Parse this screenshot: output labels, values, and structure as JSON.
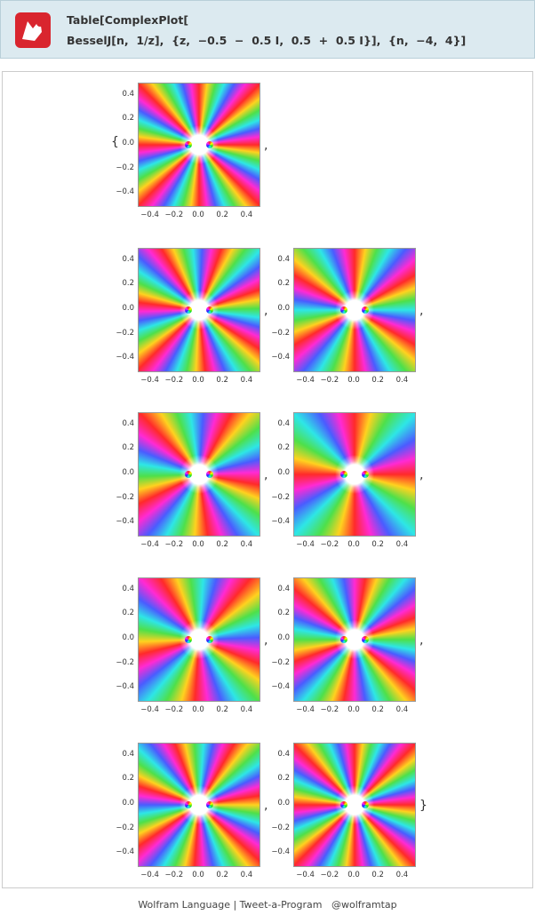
{
  "header": {
    "lines": [
      "Table[ComplexPlot[",
      "BesselJ[n,  1/z],  {z,  −0.5  −  0.5 I,  0.5  +  0.5 I}],  {n,  −4,  4}]"
    ]
  },
  "output": {
    "brace_open": "{",
    "separator": ",",
    "brace_close": "}",
    "plots": [
      {
        "yticks": [
          "0.4",
          "0.2",
          "0.0",
          "−0.2",
          "−0.4"
        ],
        "xticks": [
          "−0.4",
          "−0.2",
          "0.0",
          "0.2",
          "0.4"
        ]
      },
      {
        "yticks": [
          "0.4",
          "0.2",
          "0.0",
          "−0.2",
          "−0.4"
        ],
        "xticks": [
          "−0.4",
          "−0.2",
          "0.0",
          "0.2",
          "0.4"
        ]
      },
      {
        "yticks": [
          "0.4",
          "0.2",
          "0.0",
          "−0.2",
          "−0.4"
        ],
        "xticks": [
          "−0.4",
          "−0.2",
          "0.0",
          "0.2",
          "0.4"
        ]
      },
      {
        "yticks": [
          "0.4",
          "0.2",
          "0.0",
          "−0.2",
          "−0.4"
        ],
        "xticks": [
          "−0.4",
          "−0.2",
          "0.0",
          "0.2",
          "0.4"
        ]
      },
      {
        "yticks": [
          "0.4",
          "0.2",
          "0.0",
          "−0.2",
          "−0.4"
        ],
        "xticks": [
          "−0.4",
          "−0.2",
          "0.0",
          "0.2",
          "0.4"
        ]
      },
      {
        "yticks": [
          "0.4",
          "0.2",
          "0.0",
          "−0.2",
          "−0.4"
        ],
        "xticks": [
          "−0.4",
          "−0.2",
          "0.0",
          "0.2",
          "0.4"
        ]
      },
      {
        "yticks": [
          "0.4",
          "0.2",
          "0.0",
          "−0.2",
          "−0.4"
        ],
        "xticks": [
          "−0.4",
          "−0.2",
          "0.0",
          "0.2",
          "0.4"
        ]
      },
      {
        "yticks": [
          "0.4",
          "0.2",
          "0.0",
          "−0.2",
          "−0.4"
        ],
        "xticks": [
          "−0.4",
          "−0.2",
          "0.0",
          "0.2",
          "0.4"
        ]
      },
      {
        "yticks": [
          "0.4",
          "0.2",
          "0.0",
          "−0.2",
          "−0.4"
        ],
        "xticks": [
          "−0.4",
          "−0.2",
          "0.0",
          "0.2",
          "0.4"
        ]
      }
    ]
  },
  "footer": {
    "text": "Wolfram Language | Tweet-a-Program   @wolframtap"
  }
}
